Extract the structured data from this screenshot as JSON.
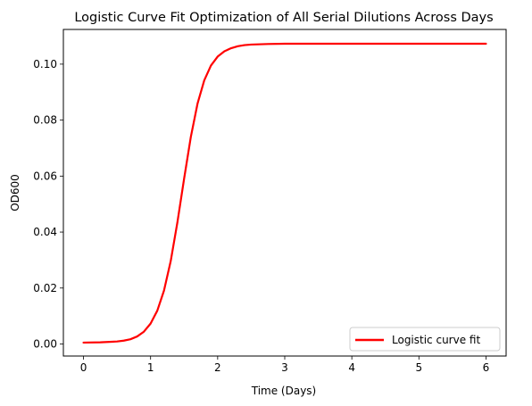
{
  "chart_data": {
    "type": "line",
    "title": "Logistic Curve Fit Optimization of All Serial Dilutions Across Days",
    "xlabel": "Time (Days)",
    "ylabel": "OD600",
    "xlim": [
      -0.3,
      6.3
    ],
    "ylim": [
      -0.0043,
      0.1124
    ],
    "x_ticks": [
      0,
      1,
      2,
      3,
      4,
      5,
      6
    ],
    "y_ticks": [
      0.0,
      0.02,
      0.04,
      0.06,
      0.08,
      0.1
    ],
    "x_tick_labels": [
      "0",
      "1",
      "2",
      "3",
      "4",
      "5",
      "6"
    ],
    "y_tick_labels": [
      "0.00",
      "0.02",
      "0.04",
      "0.06",
      "0.08",
      "0.10"
    ],
    "grid": false,
    "legend_position": "lower-right",
    "series": [
      {
        "name": "Logistic curve fit",
        "color": "#ff0000",
        "x": [
          0,
          0.25,
          0.5,
          0.6,
          0.7,
          0.8,
          0.9,
          1.0,
          1.1,
          1.2,
          1.3,
          1.4,
          1.5,
          1.6,
          1.7,
          1.8,
          1.9,
          2.0,
          2.1,
          2.2,
          2.3,
          2.4,
          2.5,
          2.75,
          3.0,
          3.5,
          4.0,
          4.5,
          5.0,
          5.5,
          6.0
        ],
        "y": [
          0.0005,
          0.0006,
          0.0009,
          0.0012,
          0.0017,
          0.0027,
          0.0044,
          0.0073,
          0.0119,
          0.0191,
          0.0296,
          0.0435,
          0.0591,
          0.074,
          0.0859,
          0.0942,
          0.0995,
          0.1027,
          0.1046,
          0.1057,
          0.1064,
          0.1068,
          0.107,
          0.1072,
          0.1073,
          0.1073,
          0.1073,
          0.1073,
          0.1073,
          0.1073,
          0.1073
        ]
      }
    ]
  }
}
